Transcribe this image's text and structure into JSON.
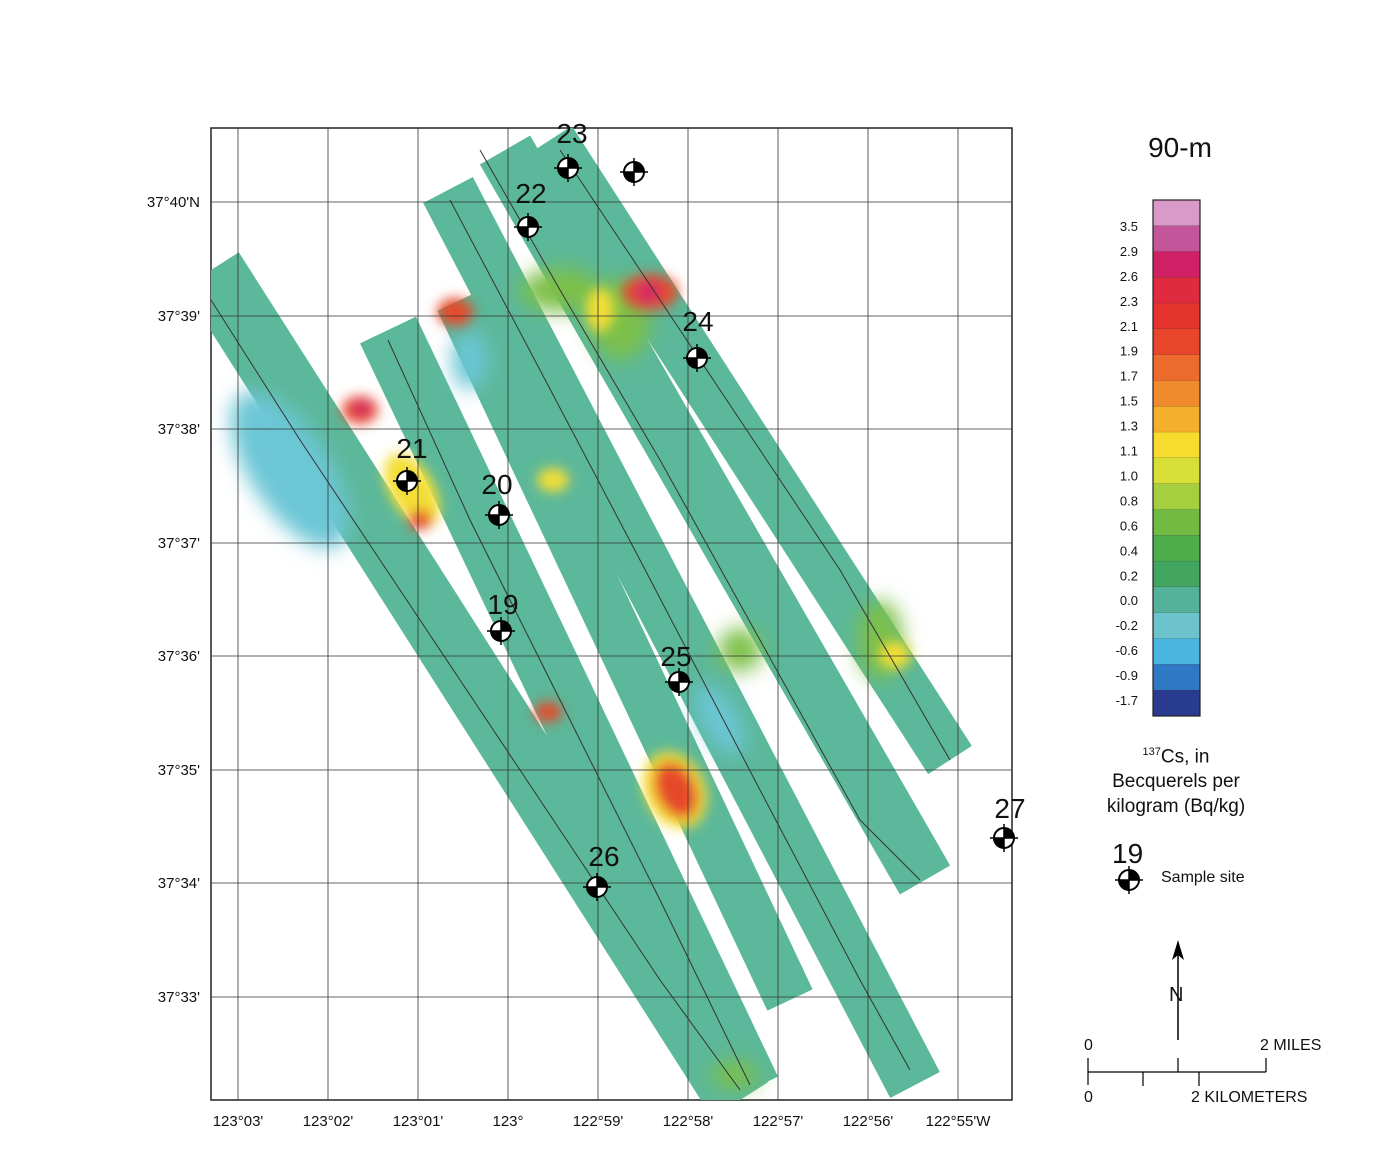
{
  "map": {
    "lon_labels": [
      "123°03'",
      "123°02'",
      "123°01'",
      "123°",
      "122°59'",
      "122°58'",
      "122°57'",
      "122°56'",
      "122°55'W"
    ],
    "lat_labels": [
      "37°40'N",
      "37°39'",
      "37°38'",
      "37°37'",
      "37°36'",
      "37°35'",
      "37°34'",
      "37°33'"
    ]
  },
  "sites": [
    "23",
    "22",
    "24",
    "21",
    "20",
    "19",
    "25",
    "26",
    "27"
  ],
  "legend": {
    "title": "90-m",
    "ticks": [
      "3.5",
      "2.9",
      "2.6",
      "2.3",
      "2.1",
      "1.9",
      "1.7",
      "1.5",
      "1.3",
      "1.1",
      "1.0",
      "0.8",
      "0.6",
      "0.4",
      "0.2",
      "0.0",
      "-0.2",
      "-0.6",
      "-0.9",
      "-1.7"
    ],
    "colors": [
      "#d99ac9",
      "#c3569b",
      "#d02066",
      "#df2a40",
      "#e5332e",
      "#e8462b",
      "#ec6a2b",
      "#f08b2d",
      "#f4b02d",
      "#f7dc2f",
      "#d7de35",
      "#a5cf3f",
      "#72bb42",
      "#4fae4c",
      "#42a560",
      "#55b29a",
      "#6cc3cc",
      "#4ab5e0",
      "#2f78c4",
      "#283b8f"
    ],
    "units_sup": "137",
    "units_line1": "Cs, in",
    "units_line2": "Becquerels per",
    "units_line3": "kilogram (Bq/kg)",
    "sample_number": "19",
    "sample_label": "Sample site"
  },
  "north_label": "N",
  "scale": {
    "miles_zero": "0",
    "miles_label": "2 MILES",
    "km_zero": "0",
    "km_label": "2 KILOMETERS"
  },
  "colors": {
    "base": "#5cb89a",
    "low": "#6cc6d6",
    "mid": "#7dc04a",
    "high": "#f3de35",
    "hot": "#e64a2c",
    "peak": "#d1206a"
  }
}
